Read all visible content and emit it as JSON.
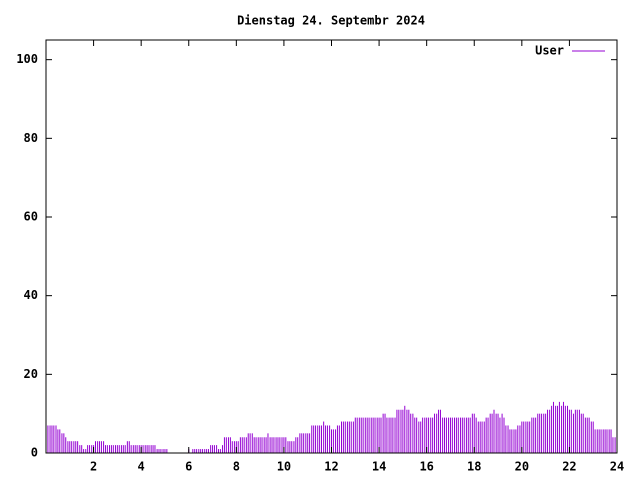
{
  "chart_data": {
    "type": "impulses",
    "title": "Dienstag 24. Septembr 2024",
    "x": [
      0,
      0.08,
      0.17,
      0.25,
      0.33,
      0.42,
      0.5,
      0.58,
      0.67,
      0.75,
      0.83,
      0.92,
      1,
      1.08,
      1.17,
      1.25,
      1.33,
      1.42,
      1.5,
      1.58,
      1.67,
      1.75,
      1.83,
      1.92,
      2,
      2.08,
      2.17,
      2.25,
      2.33,
      2.42,
      2.5,
      2.58,
      2.67,
      2.75,
      2.83,
      2.92,
      3,
      3.08,
      3.17,
      3.25,
      3.33,
      3.42,
      3.5,
      3.58,
      3.67,
      3.75,
      3.83,
      3.92,
      4,
      4.08,
      4.17,
      4.25,
      4.33,
      4.42,
      4.5,
      4.58,
      4.67,
      4.75,
      4.83,
      4.92,
      5,
      5.08,
      5.17,
      5.25,
      5.33,
      5.42,
      5.5,
      5.58,
      5.67,
      5.75,
      5.83,
      5.92,
      6,
      6.08,
      6.17,
      6.25,
      6.33,
      6.42,
      6.5,
      6.58,
      6.67,
      6.75,
      6.83,
      6.92,
      7,
      7.08,
      7.17,
      7.25,
      7.33,
      7.42,
      7.5,
      7.58,
      7.67,
      7.75,
      7.83,
      7.92,
      8,
      8.08,
      8.17,
      8.25,
      8.33,
      8.42,
      8.5,
      8.58,
      8.67,
      8.75,
      8.83,
      8.92,
      9,
      9.08,
      9.17,
      9.25,
      9.33,
      9.42,
      9.5,
      9.58,
      9.67,
      9.75,
      9.83,
      9.92,
      10,
      10.08,
      10.17,
      10.25,
      10.33,
      10.42,
      10.5,
      10.58,
      10.67,
      10.75,
      10.83,
      10.92,
      11,
      11.08,
      11.17,
      11.25,
      11.33,
      11.42,
      11.5,
      11.58,
      11.67,
      11.75,
      11.83,
      11.92,
      12,
      12.08,
      12.17,
      12.25,
      12.33,
      12.42,
      12.5,
      12.58,
      12.67,
      12.75,
      12.83,
      12.92,
      13,
      13.08,
      13.17,
      13.25,
      13.33,
      13.42,
      13.5,
      13.58,
      13.67,
      13.75,
      13.83,
      13.92,
      14,
      14.08,
      14.17,
      14.25,
      14.33,
      14.42,
      14.5,
      14.58,
      14.67,
      14.75,
      14.83,
      14.92,
      15,
      15.08,
      15.17,
      15.25,
      15.33,
      15.42,
      15.5,
      15.58,
      15.67,
      15.75,
      15.83,
      15.92,
      16,
      16.08,
      16.17,
      16.25,
      16.33,
      16.42,
      16.5,
      16.58,
      16.67,
      16.75,
      16.83,
      16.92,
      17,
      17.08,
      17.17,
      17.25,
      17.33,
      17.42,
      17.5,
      17.58,
      17.67,
      17.75,
      17.83,
      17.92,
      18,
      18.08,
      18.17,
      18.25,
      18.33,
      18.42,
      18.5,
      18.58,
      18.67,
      18.75,
      18.83,
      18.92,
      19,
      19.08,
      19.17,
      19.25,
      19.33,
      19.42,
      19.5,
      19.58,
      19.67,
      19.75,
      19.83,
      19.92,
      20,
      20.08,
      20.17,
      20.25,
      20.33,
      20.42,
      20.5,
      20.58,
      20.67,
      20.75,
      20.83,
      20.92,
      21,
      21.08,
      21.17,
      21.25,
      21.33,
      21.42,
      21.5,
      21.58,
      21.67,
      21.75,
      21.83,
      21.92,
      22,
      22.08,
      22.17,
      22.25,
      22.33,
      22.42,
      22.5,
      22.58,
      22.67,
      22.75,
      22.83,
      22.92,
      23,
      23.08,
      23.17,
      23.25,
      23.33,
      23.42,
      23.5,
      23.58,
      23.67,
      23.75,
      23.83,
      23.92
    ],
    "series": [
      {
        "name": "User",
        "color": "#9400d3",
        "values": [
          7,
          7,
          7,
          7,
          7,
          7,
          6,
          6,
          5,
          5,
          4,
          3,
          3,
          3,
          3,
          3,
          3,
          2,
          2,
          1,
          1,
          2,
          2,
          2,
          2,
          3,
          3,
          3,
          3,
          3,
          2,
          2,
          2,
          2,
          2,
          2,
          2,
          2,
          2,
          2,
          2,
          3,
          3,
          2,
          2,
          2,
          2,
          2,
          2,
          2,
          2,
          2,
          2,
          2,
          2,
          2,
          1,
          1,
          1,
          1,
          1,
          1,
          0,
          0,
          0,
          0,
          0,
          0,
          0,
          0,
          0,
          0,
          1,
          0,
          1,
          1,
          1,
          1,
          1,
          1,
          1,
          1,
          1,
          2,
          2,
          2,
          2,
          1,
          1,
          2,
          4,
          4,
          4,
          4,
          3,
          3,
          3,
          3,
          4,
          4,
          4,
          4,
          5,
          5,
          5,
          4,
          4,
          4,
          4,
          4,
          4,
          4,
          5,
          4,
          4,
          4,
          4,
          4,
          4,
          4,
          4,
          4,
          3,
          3,
          3,
          3,
          4,
          4,
          5,
          5,
          5,
          5,
          5,
          5,
          7,
          7,
          7,
          7,
          7,
          7,
          8,
          7,
          7,
          7,
          6,
          6,
          6,
          7,
          7,
          8,
          8,
          8,
          8,
          8,
          8,
          8,
          9,
          9,
          9,
          9,
          9,
          9,
          9,
          9,
          9,
          9,
          9,
          9,
          9,
          9,
          10,
          10,
          9,
          9,
          9,
          9,
          9,
          11,
          11,
          11,
          11,
          12,
          11,
          11,
          10,
          10,
          9,
          9,
          8,
          8,
          9,
          9,
          9,
          9,
          9,
          9,
          10,
          10,
          11,
          11,
          9,
          9,
          9,
          9,
          9,
          9,
          9,
          9,
          9,
          9,
          9,
          9,
          9,
          9,
          9,
          10,
          10,
          9,
          8,
          8,
          8,
          8,
          9,
          9,
          10,
          10,
          11,
          10,
          10,
          9,
          10,
          9,
          7,
          7,
          6,
          6,
          6,
          6,
          7,
          7,
          8,
          8,
          8,
          8,
          8,
          9,
          9,
          9,
          10,
          10,
          10,
          10,
          10,
          11,
          11,
          12,
          13,
          12,
          12,
          13,
          12,
          13,
          12,
          12,
          11,
          11,
          10,
          11,
          11,
          11,
          10,
          10,
          9,
          9,
          9,
          8,
          8,
          6,
          6,
          6,
          6,
          6,
          6,
          6,
          6,
          6,
          4,
          4
        ]
      }
    ],
    "xlim": [
      0,
      24
    ],
    "xticks": [
      2,
      4,
      6,
      8,
      10,
      12,
      14,
      16,
      18,
      20,
      22,
      24
    ],
    "ylim": [
      0,
      105
    ],
    "yticks": [
      0,
      20,
      40,
      60,
      80,
      100
    ],
    "legend": "top-right"
  }
}
